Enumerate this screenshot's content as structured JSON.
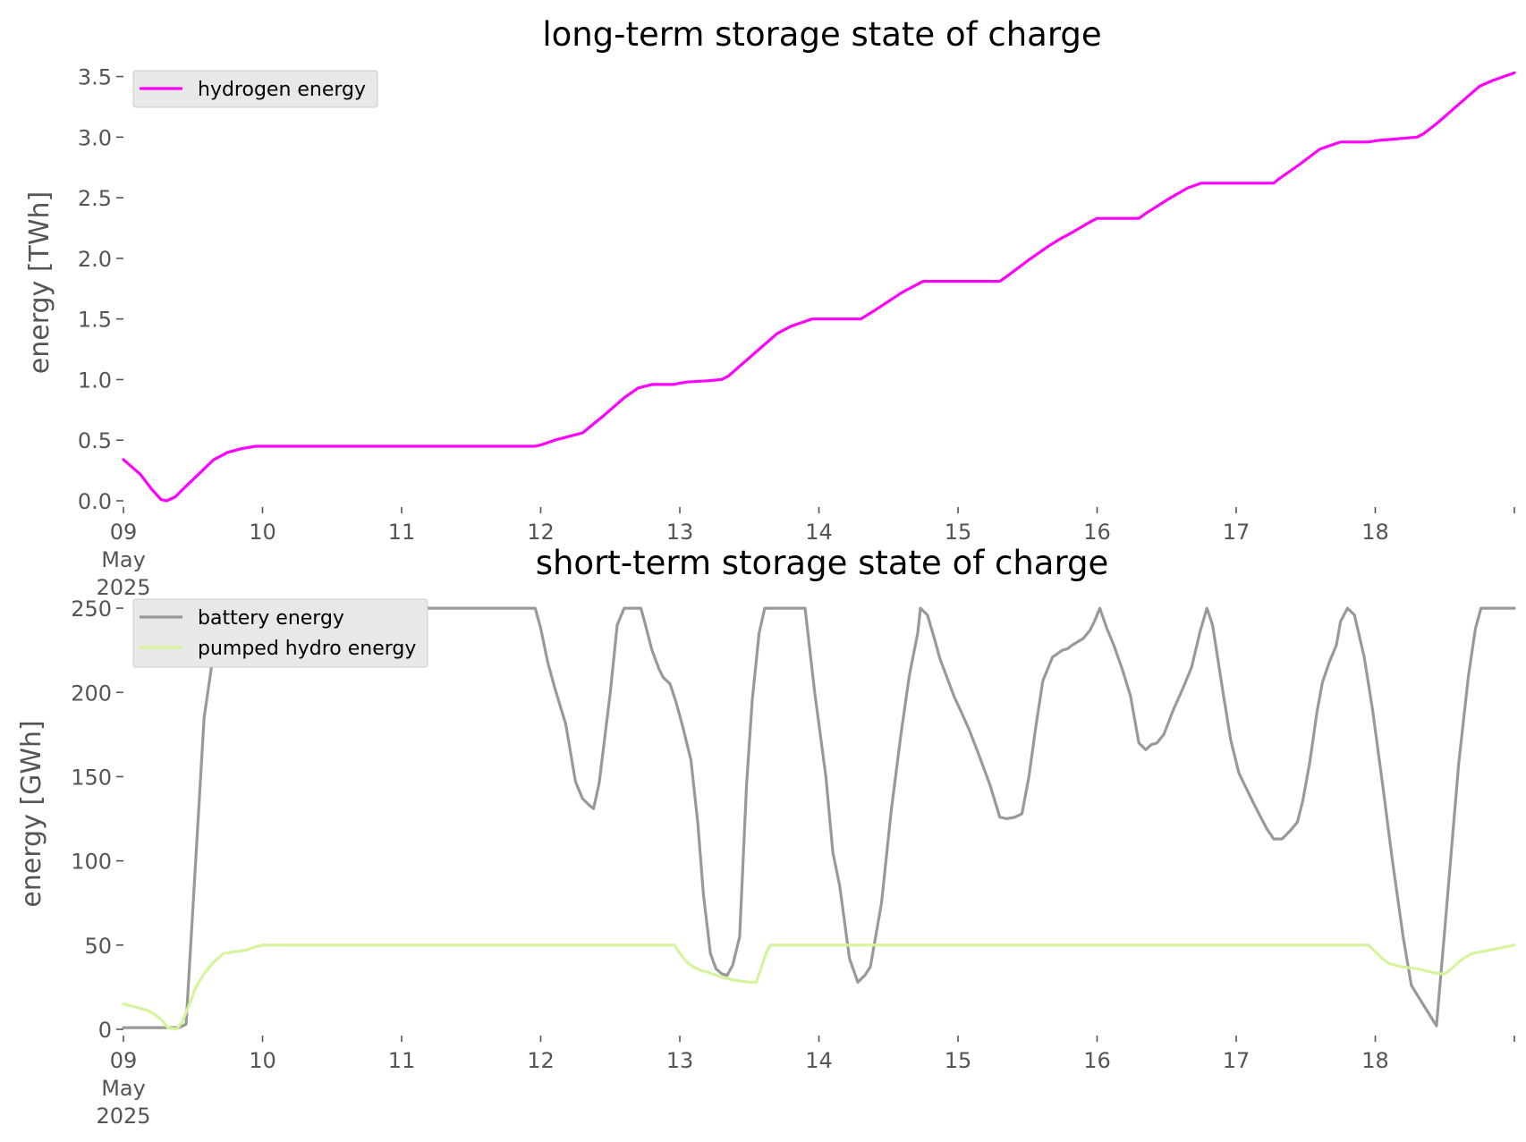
{
  "chart_data": [
    {
      "type": "line",
      "title": "long-term storage state of charge",
      "xlabel": "",
      "ylabel": "energy [TWh]",
      "x_tick_labels": [
        "09\nMay\n2025",
        "10",
        "11",
        "12",
        "13",
        "14",
        "15",
        "16",
        "17",
        "18"
      ],
      "x_range": [
        9,
        19
      ],
      "yticks": [
        0.0,
        0.5,
        1.0,
        1.5,
        2.0,
        2.5,
        3.0,
        3.5
      ],
      "ytick_labels": [
        "0.0",
        "0.5",
        "1.0",
        "1.5",
        "2.0",
        "2.5",
        "3.0",
        "3.5"
      ],
      "ylim": [
        0,
        3.6
      ],
      "grid": false,
      "legend": "top-left",
      "series": [
        {
          "name": "hydrogen energy",
          "color": "#ff00ff",
          "x": [
            9.0,
            9.12,
            9.2,
            9.27,
            9.31,
            9.37,
            9.45,
            9.55,
            9.65,
            9.75,
            9.85,
            9.95,
            10.0,
            11.0,
            11.96,
            12.0,
            12.1,
            12.2,
            12.3,
            12.45,
            12.6,
            12.7,
            12.8,
            12.95,
            13.05,
            13.2,
            13.3,
            13.35,
            13.45,
            13.6,
            13.7,
            13.8,
            13.95,
            14.3,
            14.4,
            14.6,
            14.75,
            15.3,
            15.35,
            15.5,
            15.65,
            15.75,
            15.8,
            15.95,
            16.0,
            16.3,
            16.35,
            16.5,
            16.65,
            16.75,
            17.27,
            17.3,
            17.45,
            17.6,
            17.75,
            17.95,
            18.0,
            18.1,
            18.3,
            18.35,
            18.45,
            18.6,
            18.75,
            18.85,
            19.0
          ],
          "y": [
            0.34,
            0.22,
            0.1,
            0.01,
            0.0,
            0.03,
            0.12,
            0.23,
            0.34,
            0.4,
            0.43,
            0.45,
            0.45,
            0.45,
            0.45,
            0.46,
            0.5,
            0.53,
            0.56,
            0.7,
            0.85,
            0.93,
            0.96,
            0.96,
            0.98,
            0.99,
            1.0,
            1.03,
            1.13,
            1.28,
            1.38,
            1.44,
            1.5,
            1.5,
            1.57,
            1.72,
            1.81,
            1.81,
            1.85,
            1.98,
            2.1,
            2.17,
            2.2,
            2.3,
            2.33,
            2.33,
            2.37,
            2.48,
            2.58,
            2.62,
            2.62,
            2.65,
            2.77,
            2.9,
            2.96,
            2.96,
            2.97,
            2.98,
            3.0,
            3.03,
            3.12,
            3.27,
            3.42,
            3.47,
            3.53
          ]
        }
      ]
    },
    {
      "type": "line",
      "title": "short-term storage state of charge",
      "xlabel": "",
      "ylabel": "energy [GWh]",
      "x_tick_labels": [
        "09\nMay\n2025",
        "10",
        "11",
        "12",
        "13",
        "14",
        "15",
        "16",
        "17",
        "18"
      ],
      "x_range": [
        9,
        19
      ],
      "yticks": [
        0,
        50,
        100,
        150,
        200,
        250
      ],
      "ytick_labels": [
        "0",
        "50",
        "100",
        "150",
        "200",
        "250"
      ],
      "ylim": [
        0,
        258
      ],
      "grid": false,
      "legend": "top-left",
      "series": [
        {
          "name": "battery energy",
          "color": "#999999",
          "x": [
            9.0,
            9.4,
            9.45,
            9.58,
            9.65,
            9.7,
            11.96,
            12.0,
            12.05,
            12.1,
            12.18,
            12.25,
            12.3,
            12.35,
            12.38,
            12.42,
            12.5,
            12.55,
            12.6,
            12.63,
            12.72,
            12.75,
            12.8,
            12.85,
            12.88,
            12.93,
            12.97,
            13.02,
            13.08,
            13.13,
            13.17,
            13.22,
            13.26,
            13.3,
            13.34,
            13.38,
            13.43,
            13.48,
            13.52,
            13.57,
            13.61,
            13.65,
            13.7,
            13.9,
            13.97,
            14.05,
            14.1,
            14.15,
            14.22,
            14.28,
            14.33,
            14.37,
            14.45,
            14.52,
            14.59,
            14.65,
            14.71,
            14.73,
            14.78,
            14.83,
            14.87,
            14.92,
            14.97,
            15.02,
            15.08,
            15.15,
            15.23,
            15.3,
            15.35,
            15.41,
            15.46,
            15.51,
            15.56,
            15.61,
            15.68,
            15.75,
            15.79,
            15.82,
            15.86,
            15.9,
            15.95,
            15.98,
            16.02,
            16.07,
            16.12,
            16.18,
            16.24,
            16.3,
            16.35,
            16.39,
            16.43,
            16.48,
            16.55,
            16.62,
            16.68,
            16.74,
            16.79,
            16.83,
            16.9,
            16.96,
            17.02,
            17.12,
            17.17,
            17.22,
            17.27,
            17.33,
            17.39,
            17.44,
            17.48,
            17.53,
            17.58,
            17.62,
            17.67,
            17.72,
            17.75,
            17.8,
            17.85,
            17.92,
            17.98,
            18.05,
            18.12,
            18.2,
            18.26,
            18.44,
            18.5,
            18.6,
            18.67,
            18.72,
            18.76,
            19.0
          ],
          "y": [
            1,
            1,
            3,
            185,
            225,
            250,
            250,
            238,
            218,
            203,
            181,
            147,
            137,
            133,
            131,
            146,
            200,
            240,
            250,
            250,
            250,
            241,
            225,
            214,
            209,
            205,
            195,
            180,
            160,
            122,
            80,
            45,
            36,
            33,
            32,
            38,
            55,
            145,
            195,
            235,
            250,
            250,
            250,
            250,
            200,
            150,
            105,
            85,
            42,
            28,
            32,
            37,
            75,
            130,
            175,
            210,
            235,
            250,
            246,
            232,
            220,
            209,
            198,
            189,
            178,
            163,
            145,
            126,
            125,
            126,
            128,
            150,
            180,
            207,
            221,
            225,
            226,
            228,
            230,
            232,
            237,
            242,
            250,
            238,
            228,
            214,
            198,
            170,
            166,
            169,
            170,
            175,
            190,
            203,
            215,
            236,
            250,
            240,
            203,
            172,
            152,
            135,
            127,
            119,
            113,
            113,
            118,
            123,
            136,
            159,
            188,
            206,
            218,
            228,
            242,
            250,
            246,
            221,
            190,
            147,
            102,
            55,
            26,
            2,
            60,
            158,
            210,
            238,
            250,
            250
          ]
        },
        {
          "name": "pumped hydro energy",
          "color": "#d4f59c",
          "x": [
            9.0,
            9.1,
            9.18,
            9.24,
            9.28,
            9.32,
            9.38,
            9.42,
            9.47,
            9.52,
            9.58,
            9.65,
            9.72,
            9.8,
            9.88,
            9.95,
            10.0,
            12.96,
            13.0,
            13.05,
            13.1,
            13.15,
            13.2,
            13.3,
            13.4,
            13.5,
            13.55,
            13.62,
            13.65,
            13.7,
            17.95,
            18.0,
            18.05,
            18.1,
            18.2,
            18.3,
            18.4,
            18.45,
            18.5,
            18.55,
            18.6,
            18.65,
            18.7,
            19.0
          ],
          "y": [
            15,
            13,
            11,
            8,
            5,
            1,
            0,
            4,
            14,
            25,
            33,
            40,
            45,
            46,
            47,
            49,
            50,
            50,
            45,
            40,
            37,
            35,
            34,
            31,
            29,
            28,
            28,
            45,
            50,
            50,
            50,
            46,
            42,
            39,
            37,
            36,
            34,
            33,
            33,
            36,
            40,
            43,
            45,
            50
          ]
        }
      ]
    }
  ]
}
